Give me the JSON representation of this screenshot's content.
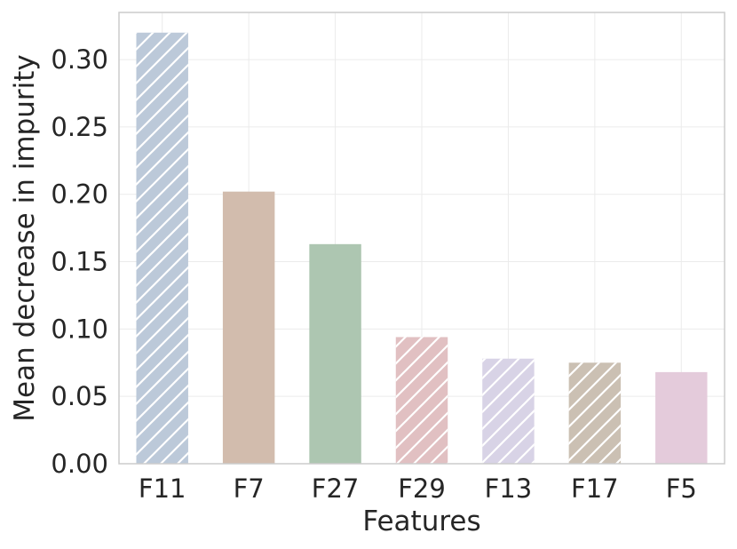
{
  "chart_data": {
    "type": "bar",
    "title": "",
    "xlabel": "Features",
    "ylabel": "Mean decrease in impurity",
    "categories": [
      "F11",
      "F7",
      "F27",
      "F29",
      "F13",
      "F17",
      "F5"
    ],
    "values": [
      0.32,
      0.202,
      0.163,
      0.094,
      0.078,
      0.075,
      0.068
    ],
    "colors": [
      "#bcc9d9",
      "#d2bcad",
      "#adc6b1",
      "#e1c0c2",
      "#d8d3e6",
      "#cbc0b3",
      "#e4cbdb"
    ],
    "hatched": [
      true,
      false,
      false,
      true,
      true,
      true,
      false
    ],
    "ylim": [
      0,
      0.335
    ],
    "yticks": [
      0.0,
      0.05,
      0.1,
      0.15,
      0.2,
      0.25,
      0.3
    ],
    "ytick_labels": [
      "0.00",
      "0.05",
      "0.10",
      "0.15",
      "0.20",
      "0.25",
      "0.30"
    ],
    "grid": true
  }
}
